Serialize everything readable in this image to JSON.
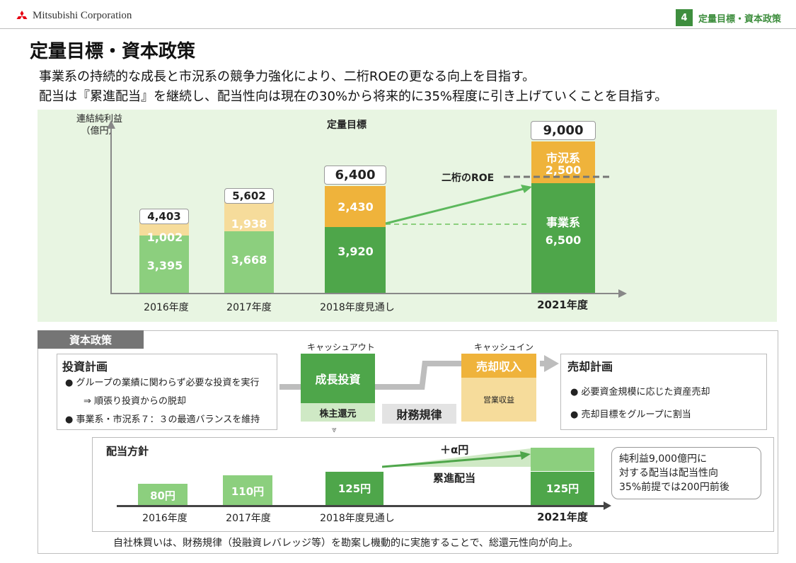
{
  "header": {
    "company": "Mitsubishi Corporation",
    "page_number": "4",
    "section_title": "定量目標・資本政策"
  },
  "title": "定量目標・資本政策",
  "subtitle_lines": [
    "事業系の持続的な成長と市況系の競争力強化により、二桁ROEの更なる向上を目指す。",
    "配当は『累進配当』を継続し、配当性向は現在の30%から将来的に35%程度に引き上げていくことを目指す。"
  ],
  "chart_data": {
    "type": "bar",
    "title": "定量目標",
    "ylabel": "連結純利益（億円）",
    "categories": [
      "2016年度",
      "2017年度",
      "2018年度見通し",
      "2021年度"
    ],
    "series": [
      {
        "name": "事業系",
        "values": [
          3395,
          3668,
          3920,
          6500
        ]
      },
      {
        "name": "市況系",
        "values": [
          1002,
          1938,
          2430,
          2500
        ]
      }
    ],
    "totals": [
      4403,
      5602,
      6400,
      9000
    ],
    "annotations": [
      "二桁のROE"
    ],
    "colors": {
      "business_past": "#8ccf7e",
      "market_past": "#f6dc9b",
      "business": "#4ea64a",
      "market": "#efb33b"
    }
  },
  "chart_labels": {
    "ylabel_line1": "連結純利益",
    "ylabel_line2": "（億円）",
    "chart_title": "定量目標",
    "roe": "二桁のROE",
    "seg_market_2021": "市況系",
    "seg_business_2021": "事業系",
    "values_text": {
      "b2016": "3,395",
      "m2016": "1,002",
      "t2016": "4,403",
      "b2017": "3,668",
      "m2017": "1,938",
      "t2017": "5,602",
      "b2018": "3,920",
      "m2018": "2,430",
      "t2018": "6,400",
      "b2021": "6,500",
      "m2021": "2,500",
      "t2021": "9,000"
    },
    "x": [
      "2016年度",
      "2017年度",
      "2018年度見通し",
      "2021年度"
    ]
  },
  "capital": {
    "tab": "資本政策",
    "invest_title": "投資計画",
    "invest_items": [
      "グループの業績に関わらず必要な投資を実行",
      "⇒ 順張り投資からの脱却",
      "事業系・市況系７：３の最適バランスを維持"
    ],
    "cash_out": "キャッシュアウト",
    "cash_in": "キャッシュイン",
    "growth_invest": "成長投資",
    "shareholder_return": "株主還元",
    "fin_discipline": "財務規律",
    "sale_income": "売却収入",
    "operating_income": "営業収益",
    "sale_title": "売却計画",
    "sale_items": [
      "必要資金規模に応じた資産売却",
      "売却目標をグループに割当"
    ]
  },
  "dividend": {
    "title": "配当方針",
    "values": [
      "80円",
      "110円",
      "125円",
      "125円"
    ],
    "plus_alpha": "＋α円",
    "progressive": "累進配当",
    "x": [
      "2016年度",
      "2017年度",
      "2018年度見通し",
      "2021年度"
    ],
    "note": [
      "純利益9,000億円に",
      "対する配当は配当性向",
      "35%前提では200円前後"
    ]
  },
  "footer_note": "自社株買いは、財務規律（投融資レバレッジ等）を勘案し機動的に実施することで、総還元性向が向上。"
}
